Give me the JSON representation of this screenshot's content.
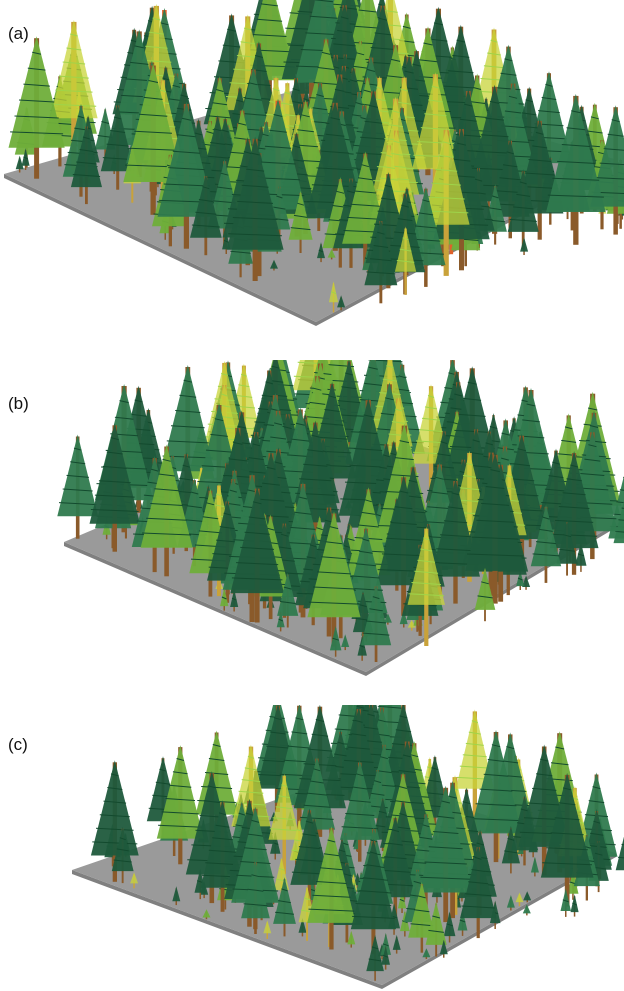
{
  "panels": [
    {
      "label": "(a)"
    },
    {
      "label": "(b)"
    },
    {
      "label": "(c)"
    }
  ],
  "colors": {
    "ground": "#9a9a9a",
    "ground_edge": "#808080",
    "conifer_dark": "#1f5a3c",
    "conifer_mid": "#2f7a4e",
    "conifer_light": "#6fae3a",
    "conifer_yellow": "#c8d43a",
    "trunk": "#8a5a2a",
    "trunk_dead": "#c9a23a",
    "trunk_red": "#e0602a"
  }
}
